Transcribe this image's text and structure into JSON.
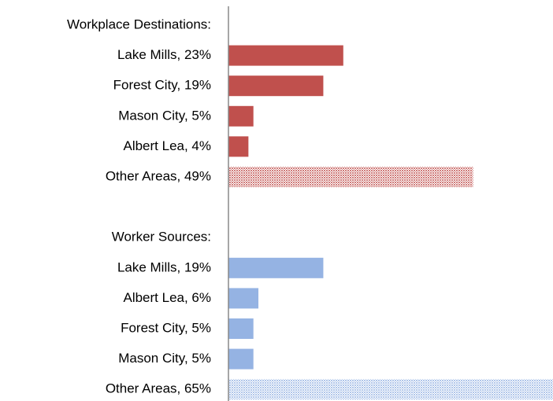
{
  "chart_data": {
    "type": "bar",
    "orientation": "horizontal",
    "xlim": [
      0,
      65
    ],
    "groups": [
      {
        "name": "Workplace Destinations:",
        "color": "#c0504d",
        "categories": [
          "Lake Mills, 23%",
          "Forest City, 19%",
          "Mason City, 5%",
          "Albert Lea, 4%",
          "Other Areas, 49%"
        ],
        "values": [
          23,
          19,
          5,
          4,
          49
        ],
        "hatched": [
          false,
          false,
          false,
          false,
          true
        ]
      },
      {
        "name": "Worker Sources:",
        "color": "#95b3e3",
        "categories": [
          "Lake Mills, 19%",
          "Albert Lea, 6%",
          "Forest City, 5%",
          "Mason City, 5%",
          "Other Areas, 65%"
        ],
        "values": [
          19,
          6,
          5,
          5,
          65
        ],
        "hatched": [
          false,
          false,
          false,
          false,
          true
        ]
      }
    ]
  }
}
